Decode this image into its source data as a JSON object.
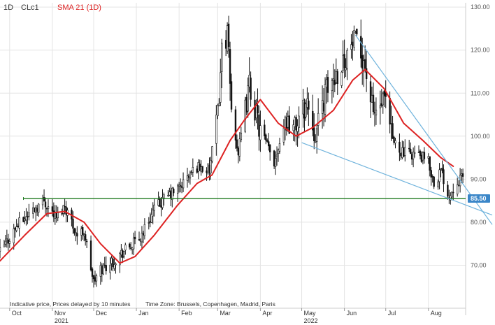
{
  "header": {
    "timeframe": "1D",
    "symbol": "CLc1",
    "indicator": "SMA 21 (1D)"
  },
  "footer": {
    "disclaimer": "Indicative price, Prices delayed by 10 minutes",
    "timezone": "Time Zone: Brussels, Copenhagen, Madrid, Paris"
  },
  "colors": {
    "candle": "#111111",
    "sma": "#dd2222",
    "support": "#1e7a1e",
    "trendline": "#6fb3dc",
    "badge": "#3a86c8",
    "grid": "#e4e4e4",
    "axis": "#cccccc"
  },
  "chart_data": {
    "type": "candlestick",
    "y_axis": {
      "ticks": [
        "70.00",
        "80.00",
        "90.00",
        "100.00",
        "110.00",
        "120.00",
        "130.00"
      ],
      "tick_values": [
        70,
        80,
        90,
        100,
        110,
        120,
        130
      ],
      "range": [
        60,
        131
      ],
      "position": "right"
    },
    "x_axis": {
      "ticks": [
        "Oct",
        "Nov",
        "Dec",
        "Jan",
        "Feb",
        "Mar",
        "Apr",
        "May",
        "Jun",
        "Jul",
        "Aug"
      ],
      "tick_dates": [
        "2021-10-01",
        "2021-11-01",
        "2021-12-01",
        "2022-01-01",
        "2022-02-01",
        "2022-03-01",
        "2022-04-01",
        "2022-05-01",
        "2022-06-01",
        "2022-07-01",
        "2022-08-01"
      ],
      "years": [
        {
          "label": "2021",
          "date": "2021-11-01"
        },
        {
          "label": "2022",
          "date": "2022-05-01"
        }
      ],
      "range": [
        "2021-09-24",
        "2022-08-28"
      ]
    },
    "price_path": [
      [
        "2021-09-24",
        73
      ],
      [
        "2021-10-06",
        79
      ],
      [
        "2021-10-18",
        83
      ],
      [
        "2021-10-26",
        85
      ],
      [
        "2021-11-04",
        81
      ],
      [
        "2021-11-10",
        84
      ],
      [
        "2021-11-19",
        77
      ],
      [
        "2021-11-24",
        78
      ],
      [
        "2021-12-01",
        66
      ],
      [
        "2021-12-06",
        69
      ],
      [
        "2021-12-15",
        71
      ],
      [
        "2021-12-22",
        73
      ],
      [
        "2022-01-03",
        76
      ],
      [
        "2022-01-14",
        83
      ],
      [
        "2022-01-24",
        86
      ],
      [
        "2022-02-01",
        88
      ],
      [
        "2022-02-14",
        93
      ],
      [
        "2022-02-23",
        92
      ],
      [
        "2022-03-01",
        105
      ],
      [
        "2022-03-04",
        120
      ],
      [
        "2022-03-08",
        124
      ],
      [
        "2022-03-11",
        106
      ],
      [
        "2022-03-16",
        96
      ],
      [
        "2022-03-24",
        112
      ],
      [
        "2022-03-31",
        102
      ],
      [
        "2022-04-11",
        94
      ],
      [
        "2022-04-19",
        104
      ],
      [
        "2022-04-26",
        102
      ],
      [
        "2022-05-05",
        108
      ],
      [
        "2022-05-11",
        100
      ],
      [
        "2022-05-18",
        110
      ],
      [
        "2022-05-27",
        115
      ],
      [
        "2022-06-08",
        122
      ],
      [
        "2022-06-15",
        118
      ],
      [
        "2022-06-22",
        105
      ],
      [
        "2022-06-30",
        108
      ],
      [
        "2022-07-06",
        99
      ],
      [
        "2022-07-14",
        96
      ],
      [
        "2022-07-22",
        96
      ],
      [
        "2022-08-01",
        94
      ],
      [
        "2022-08-05",
        89
      ],
      [
        "2022-08-10",
        92
      ],
      [
        "2022-08-16",
        86
      ],
      [
        "2022-08-22",
        90
      ]
    ],
    "sma_21": [
      [
        "2021-09-24",
        71
      ],
      [
        "2021-10-12",
        77
      ],
      [
        "2021-10-28",
        82
      ],
      [
        "2021-11-10",
        82.5
      ],
      [
        "2021-11-24",
        80
      ],
      [
        "2021-12-06",
        75
      ],
      [
        "2021-12-20",
        70.5
      ],
      [
        "2021-12-31",
        72
      ],
      [
        "2022-01-14",
        77
      ],
      [
        "2022-01-31",
        84
      ],
      [
        "2022-02-14",
        89
      ],
      [
        "2022-02-25",
        91
      ],
      [
        "2022-03-10",
        99
      ],
      [
        "2022-03-21",
        104
      ],
      [
        "2022-04-01",
        108.5
      ],
      [
        "2022-04-14",
        103
      ],
      [
        "2022-04-27",
        100
      ],
      [
        "2022-05-09",
        102
      ],
      [
        "2022-05-24",
        106
      ],
      [
        "2022-06-07",
        113
      ],
      [
        "2022-06-16",
        115.5
      ],
      [
        "2022-06-30",
        111
      ],
      [
        "2022-07-14",
        103
      ],
      [
        "2022-07-28",
        99
      ],
      [
        "2022-08-10",
        95
      ],
      [
        "2022-08-19",
        93
      ]
    ],
    "support_line": {
      "value": 85.5,
      "from": "2021-10-11",
      "to": "2022-08-28",
      "label": "85.50"
    },
    "trend_lines": [
      {
        "from": [
          "2022-06-09",
          123.5
        ],
        "to": [
          "2022-08-28",
          88
        ]
      },
      {
        "from": [
          "2022-05-01",
          98.5
        ],
        "to": [
          "2022-08-28",
          84
        ]
      }
    ],
    "grid": true,
    "legend": "top-left"
  }
}
